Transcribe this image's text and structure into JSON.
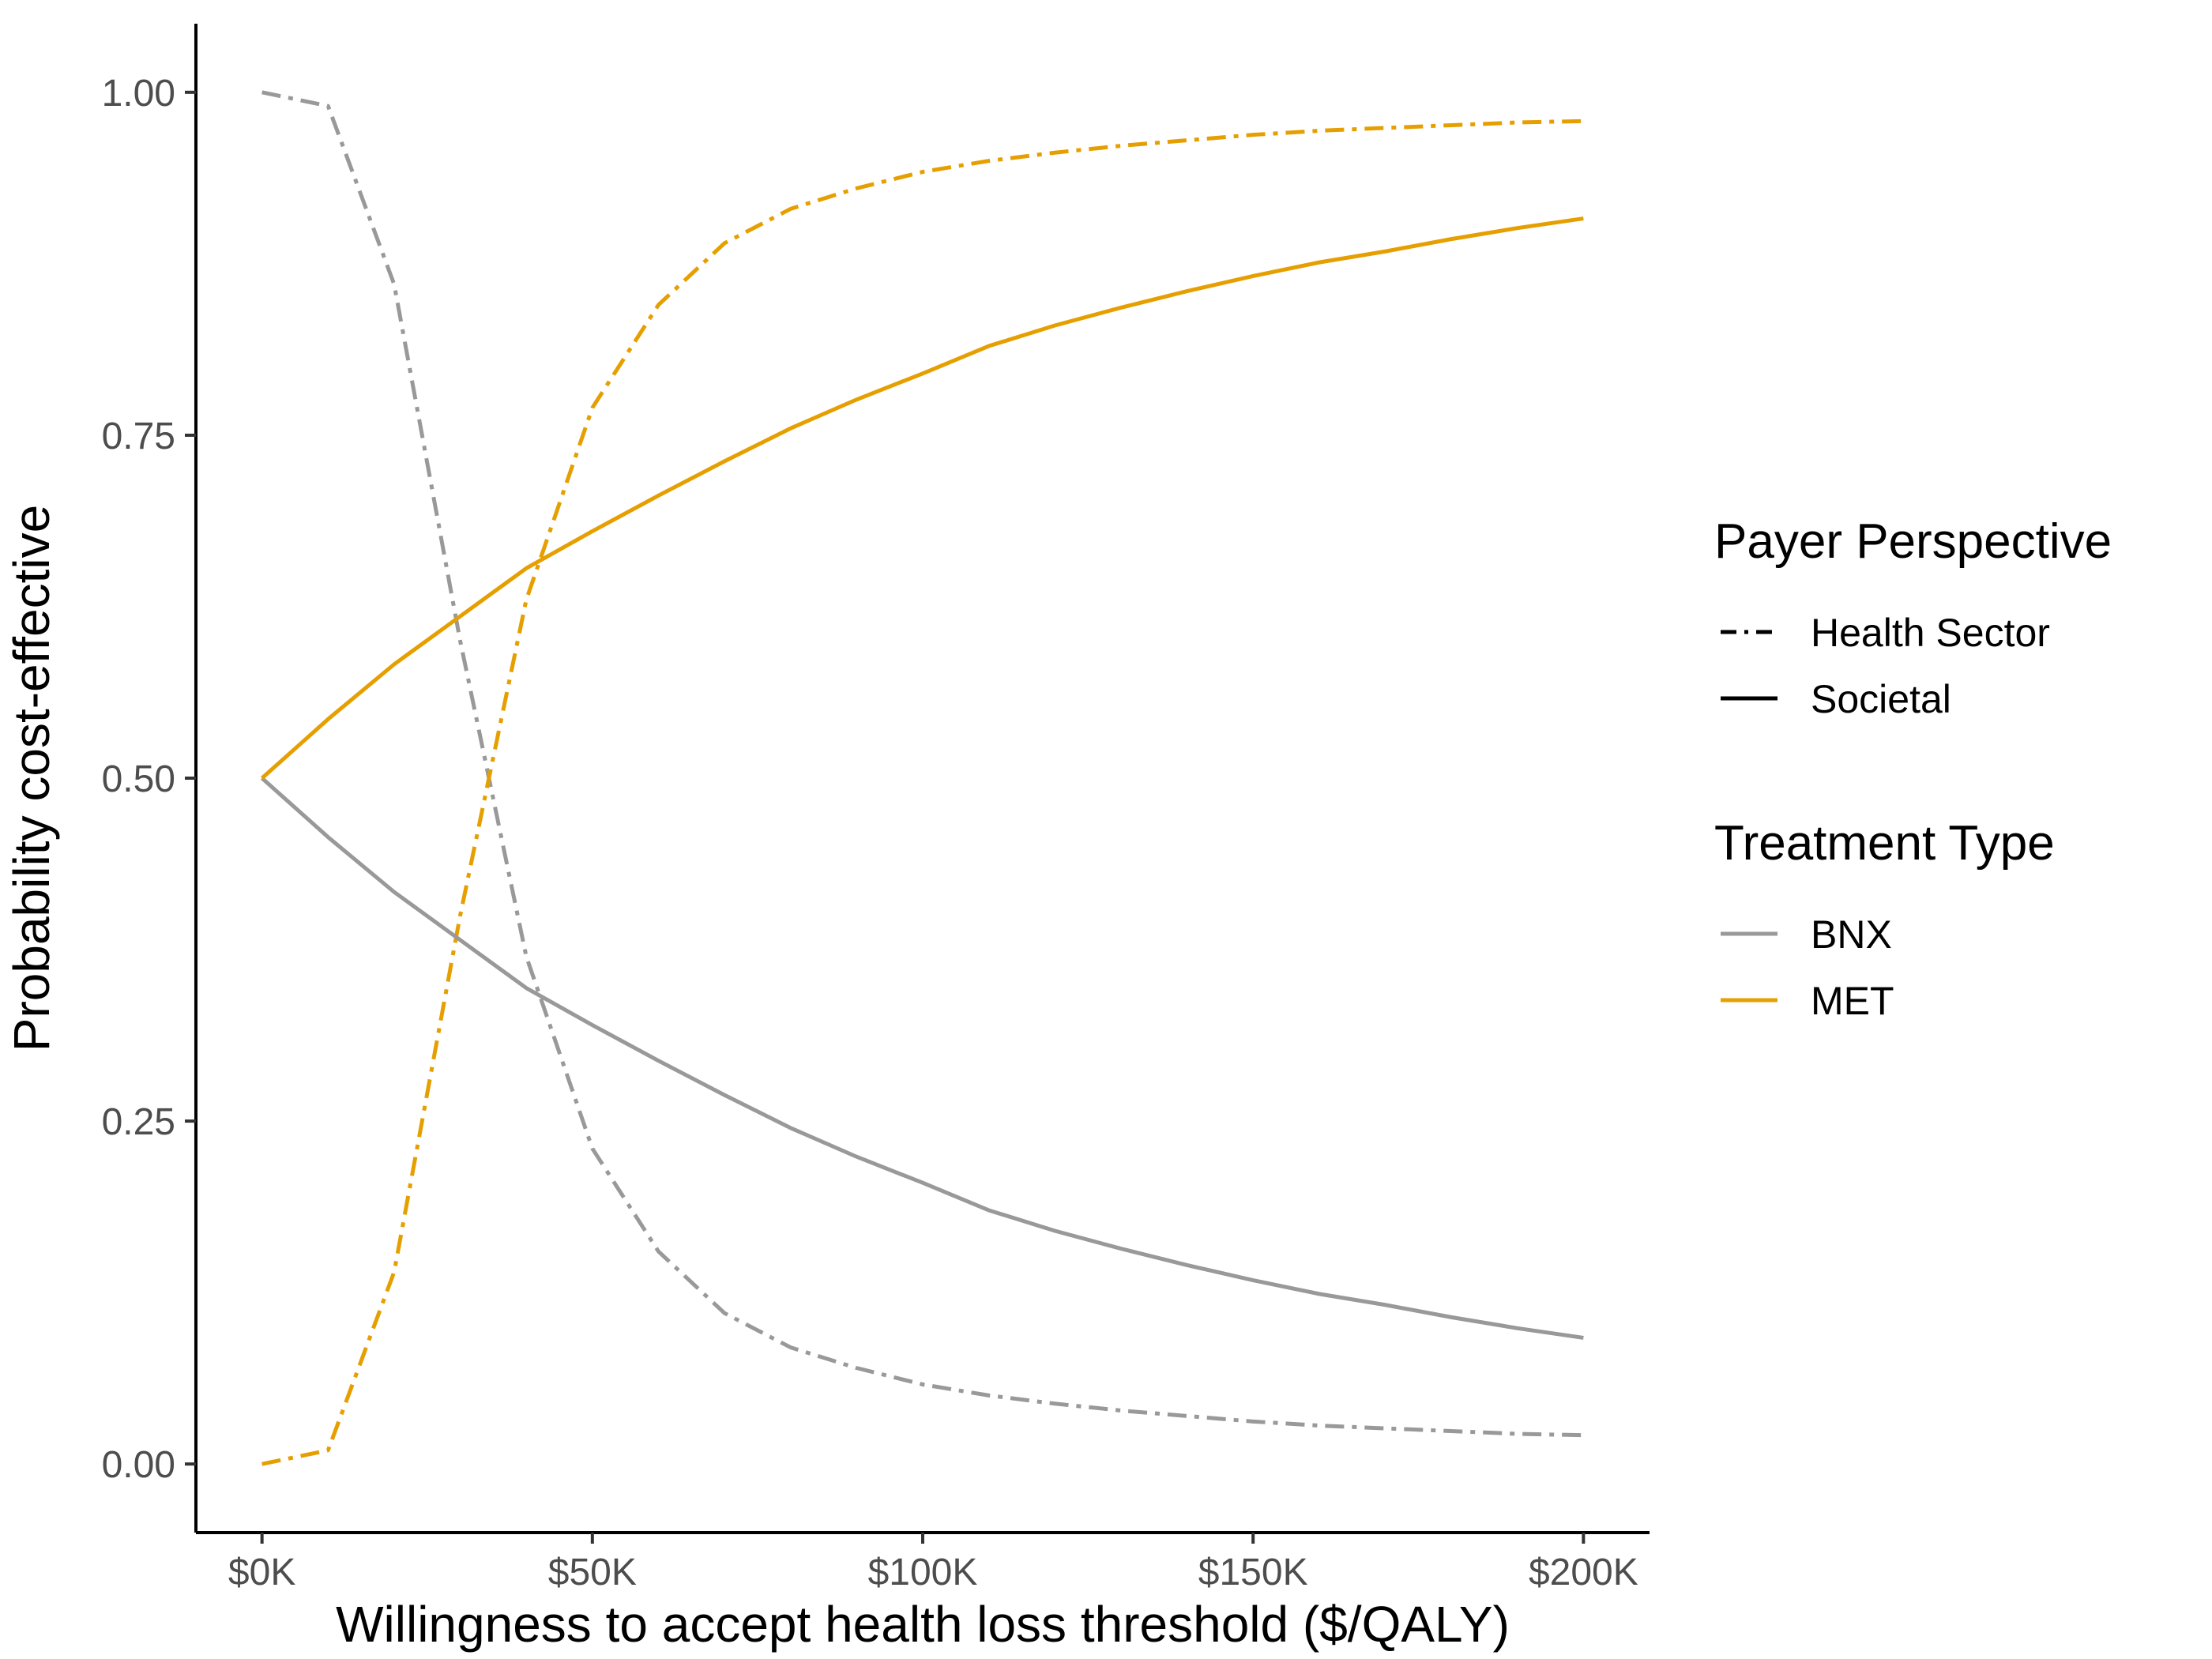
{
  "chart_data": {
    "type": "line",
    "xlabel": "Willingness to accept health loss threshold ($/QALY)",
    "ylabel": "Probability cost-effective",
    "xlim": [
      -10000,
      210000
    ],
    "ylim": [
      -0.05,
      1.05
    ],
    "x_ticks": [
      0,
      50000,
      100000,
      150000,
      200000
    ],
    "x_tick_labels": [
      "$0K",
      "$50K",
      "$100K",
      "$150K",
      "$200K"
    ],
    "y_ticks": [
      0,
      0.25,
      0.5,
      0.75,
      1.0
    ],
    "y_tick_labels": [
      "0.00",
      "0.25",
      "0.50",
      "0.75",
      "1.00"
    ],
    "grid": false,
    "legend_position": "right",
    "legends": [
      {
        "title": "Payer Perspective",
        "entries": [
          {
            "label": "Health Sector",
            "linetype": "dashdot"
          },
          {
            "label": "Societal",
            "linetype": "solid"
          }
        ]
      },
      {
        "title": "Treatment Type",
        "entries": [
          {
            "label": "BNX",
            "color": "#999999"
          },
          {
            "label": "MET",
            "color": "#E69F00"
          }
        ]
      }
    ],
    "x": [
      0,
      10000,
      20000,
      30000,
      40000,
      50000,
      60000,
      70000,
      80000,
      90000,
      100000,
      110000,
      120000,
      130000,
      140000,
      150000,
      160000,
      170000,
      180000,
      190000,
      200000
    ],
    "series": [
      {
        "name": "BNX",
        "perspective": "Health Sector",
        "color": "#999999",
        "linetype": "dashdot",
        "values": [
          1.0,
          0.99,
          0.86,
          0.6,
          0.37,
          0.23,
          0.155,
          0.11,
          0.085,
          0.07,
          0.058,
          0.05,
          0.044,
          0.039,
          0.035,
          0.031,
          0.028,
          0.026,
          0.024,
          0.022,
          0.021
        ]
      },
      {
        "name": "MET",
        "perspective": "Health Sector",
        "color": "#E69F00",
        "linetype": "dashdot",
        "values": [
          0.0,
          0.01,
          0.14,
          0.4,
          0.63,
          0.77,
          0.845,
          0.89,
          0.915,
          0.93,
          0.942,
          0.95,
          0.956,
          0.961,
          0.965,
          0.969,
          0.972,
          0.974,
          0.976,
          0.978,
          0.979
        ]
      },
      {
        "name": "BNX",
        "perspective": "Societal",
        "color": "#999999",
        "linetype": "solid",
        "values": [
          0.5,
          0.457,
          0.417,
          0.382,
          0.347,
          0.32,
          0.294,
          0.269,
          0.245,
          0.224,
          0.205,
          0.185,
          0.17,
          0.157,
          0.145,
          0.134,
          0.124,
          0.116,
          0.107,
          0.099,
          0.092
        ]
      },
      {
        "name": "MET",
        "perspective": "Societal",
        "color": "#E69F00",
        "linetype": "solid",
        "values": [
          0.5,
          0.543,
          0.583,
          0.618,
          0.653,
          0.68,
          0.706,
          0.731,
          0.755,
          0.776,
          0.795,
          0.815,
          0.83,
          0.843,
          0.855,
          0.866,
          0.876,
          0.884,
          0.893,
          0.901,
          0.908
        ]
      }
    ]
  }
}
